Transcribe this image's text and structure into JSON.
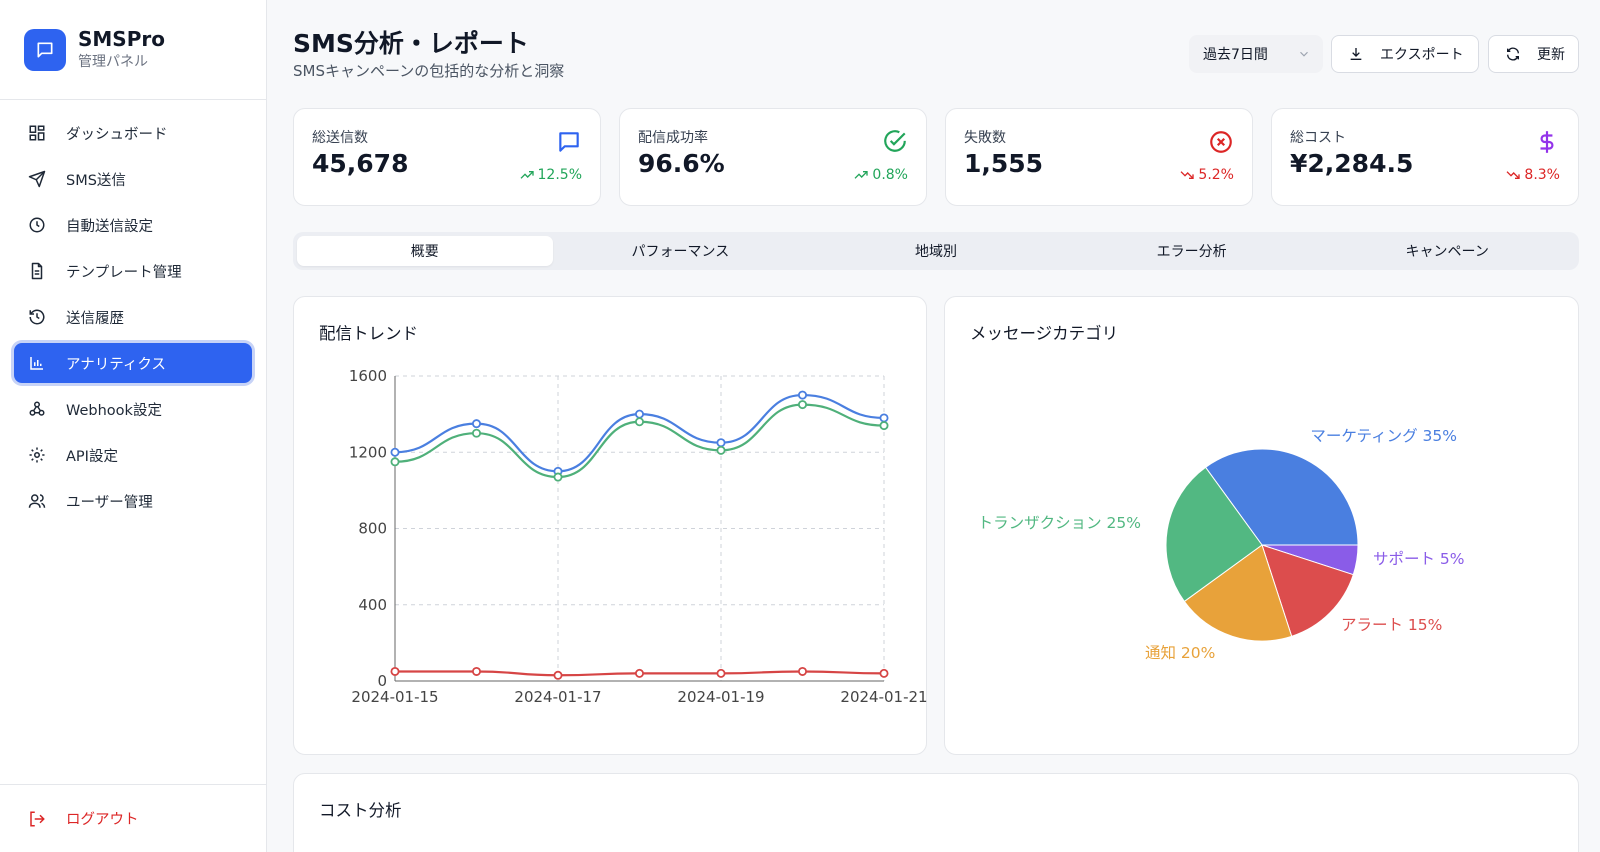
{
  "brand": {
    "title": "SMSPro",
    "subtitle": "管理パネル",
    "logo_icon": "message-square-icon",
    "color": "#2e63f0"
  },
  "sidebar": {
    "items": [
      {
        "label": "ダッシュボード",
        "icon": "layout-grid-icon",
        "active": false
      },
      {
        "label": "SMS送信",
        "icon": "send-icon",
        "active": false
      },
      {
        "label": "自動送信設定",
        "icon": "clock-icon",
        "active": false
      },
      {
        "label": "テンプレート管理",
        "icon": "file-text-icon",
        "active": false
      },
      {
        "label": "送信履歴",
        "icon": "history-icon",
        "active": false
      },
      {
        "label": "アナリティクス",
        "icon": "bar-chart-icon",
        "active": true
      },
      {
        "label": "Webhook設定",
        "icon": "webhook-icon",
        "active": false
      },
      {
        "label": "API設定",
        "icon": "gear-icon",
        "active": false
      },
      {
        "label": "ユーザー管理",
        "icon": "users-icon",
        "active": false
      }
    ],
    "logout_label": "ログアウト"
  },
  "header": {
    "title": "SMS分析・レポート",
    "subtitle": "SMSキャンペーンの包括的な分析と洞察",
    "period": "過去7日間",
    "export_label": "エクスポート",
    "refresh_label": "更新"
  },
  "stats": [
    {
      "label": "総送信数",
      "value": "45,678",
      "change": "12.5%",
      "trend": "up",
      "icon": "message-square-icon",
      "icon_color": "#2e63f0"
    },
    {
      "label": "配信成功率",
      "value": "96.6%",
      "change": "0.8%",
      "trend": "up",
      "icon": "check-circle-icon",
      "icon_color": "#22a55a"
    },
    {
      "label": "失敗数",
      "value": "1,555",
      "change": "5.2%",
      "trend": "down",
      "icon": "x-circle-icon",
      "icon_color": "#dc2626"
    },
    {
      "label": "総コスト",
      "value": "¥2,284.5",
      "change": "8.3%",
      "trend": "down",
      "icon": "dollar-icon",
      "icon_color": "#9333ea"
    }
  ],
  "tabs": [
    {
      "label": "概要",
      "active": true
    },
    {
      "label": "パフォーマンス",
      "active": false
    },
    {
      "label": "地域別",
      "active": false
    },
    {
      "label": "エラー分析",
      "active": false
    },
    {
      "label": "キャンペーン",
      "active": false
    }
  ],
  "panels": {
    "trend_title": "配信トレンド",
    "category_title": "メッセージカテゴリ",
    "cost_title": "コスト分析"
  },
  "chart_data": [
    {
      "type": "line",
      "title": "配信トレンド",
      "x": [
        "2024-01-15",
        "2024-01-16",
        "2024-01-17",
        "2024-01-18",
        "2024-01-19",
        "2024-01-20",
        "2024-01-21"
      ],
      "x_tick_labels": [
        "2024-01-15",
        "2024-01-17",
        "2024-01-19",
        "2024-01-21"
      ],
      "ylim": [
        0,
        1600
      ],
      "y_ticks": [
        0,
        400,
        800,
        1200,
        1600
      ],
      "grid": true,
      "series": [
        {
          "values": [
            1200,
            1350,
            1100,
            1400,
            1250,
            1500,
            1380
          ],
          "color": "#4a7fe0"
        },
        {
          "values": [
            1150,
            1300,
            1070,
            1360,
            1210,
            1450,
            1340
          ],
          "color": "#4fb07a"
        },
        {
          "values": [
            50,
            50,
            30,
            40,
            40,
            50,
            40
          ],
          "color": "#d64545"
        }
      ]
    },
    {
      "type": "pie",
      "title": "メッセージカテゴリ",
      "slices": [
        {
          "label": "マーケティング 35%",
          "value": 35,
          "color": "#4a7fe0"
        },
        {
          "label": "サポート 5%",
          "value": 5,
          "color": "#8a5ce8"
        },
        {
          "label": "アラート 15%",
          "value": 15,
          "color": "#dc4d4d"
        },
        {
          "label": "通知 20%",
          "value": 20,
          "color": "#e8a23a"
        },
        {
          "label": "トランザクション 25%",
          "value": 25,
          "color": "#52b882"
        }
      ]
    }
  ]
}
